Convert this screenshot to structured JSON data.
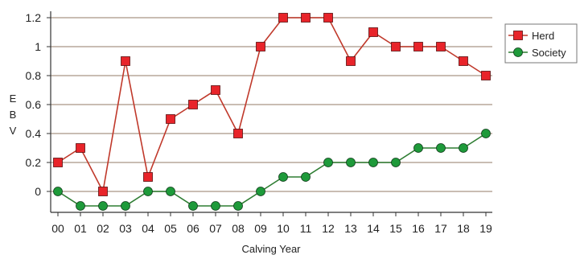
{
  "chart_data": {
    "type": "line",
    "title": "",
    "xlabel": "Calving Year",
    "ylabel": "E B V",
    "ylabel_letters": [
      "E",
      "B",
      "V"
    ],
    "categories": [
      "00",
      "01",
      "02",
      "03",
      "04",
      "05",
      "06",
      "07",
      "08",
      "09",
      "10",
      "11",
      "12",
      "13",
      "14",
      "15",
      "16",
      "17",
      "18",
      "19"
    ],
    "y_ticks": [
      0,
      0.2,
      0.4,
      0.6,
      0.8,
      1,
      1.2
    ],
    "y_tick_labels": [
      "0",
      "0.2",
      "0.4",
      "0.6",
      "0.8",
      "1",
      "1.2"
    ],
    "ylim": [
      -0.1,
      1.2
    ],
    "grid": true,
    "legend_position": "top-right",
    "series": [
      {
        "name": "Herd",
        "marker": "square",
        "color": "#e8242a",
        "line_color": "#c0392b",
        "values": [
          0.2,
          0.3,
          0,
          0.9,
          0.1,
          0.5,
          0.6,
          0.7,
          0.4,
          1.0,
          1.2,
          1.2,
          1.2,
          0.9,
          1.1,
          1.0,
          1.0,
          1.0,
          0.9,
          0.8
        ]
      },
      {
        "name": "Society",
        "marker": "circle",
        "color": "#1e9a3a",
        "line_color": "#2e7d32",
        "values": [
          0,
          -0.1,
          -0.1,
          -0.1,
          0,
          0,
          -0.1,
          -0.1,
          -0.1,
          0,
          0.1,
          0.1,
          0.2,
          0.2,
          0.2,
          0.2,
          0.3,
          0.3,
          0.3,
          0.4
        ]
      }
    ]
  }
}
